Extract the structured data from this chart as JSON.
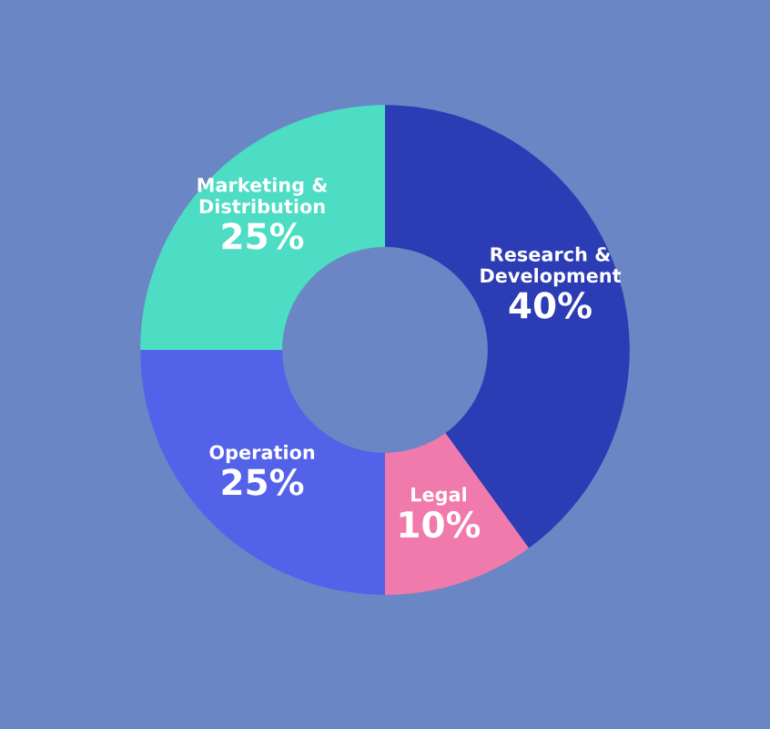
{
  "chart_data": {
    "type": "donut",
    "categories": [
      "Research &\nDevelopment",
      "Legal",
      "Operation",
      "Marketing &\nDistribution"
    ],
    "values": [
      40,
      10,
      25,
      25
    ],
    "value_labels": [
      "40%",
      "10%",
      "25%",
      "25%"
    ],
    "colors": [
      "#2c3cb4",
      "#f07aac",
      "#5462ea",
      "#4ddcc4"
    ],
    "legend": false
  }
}
